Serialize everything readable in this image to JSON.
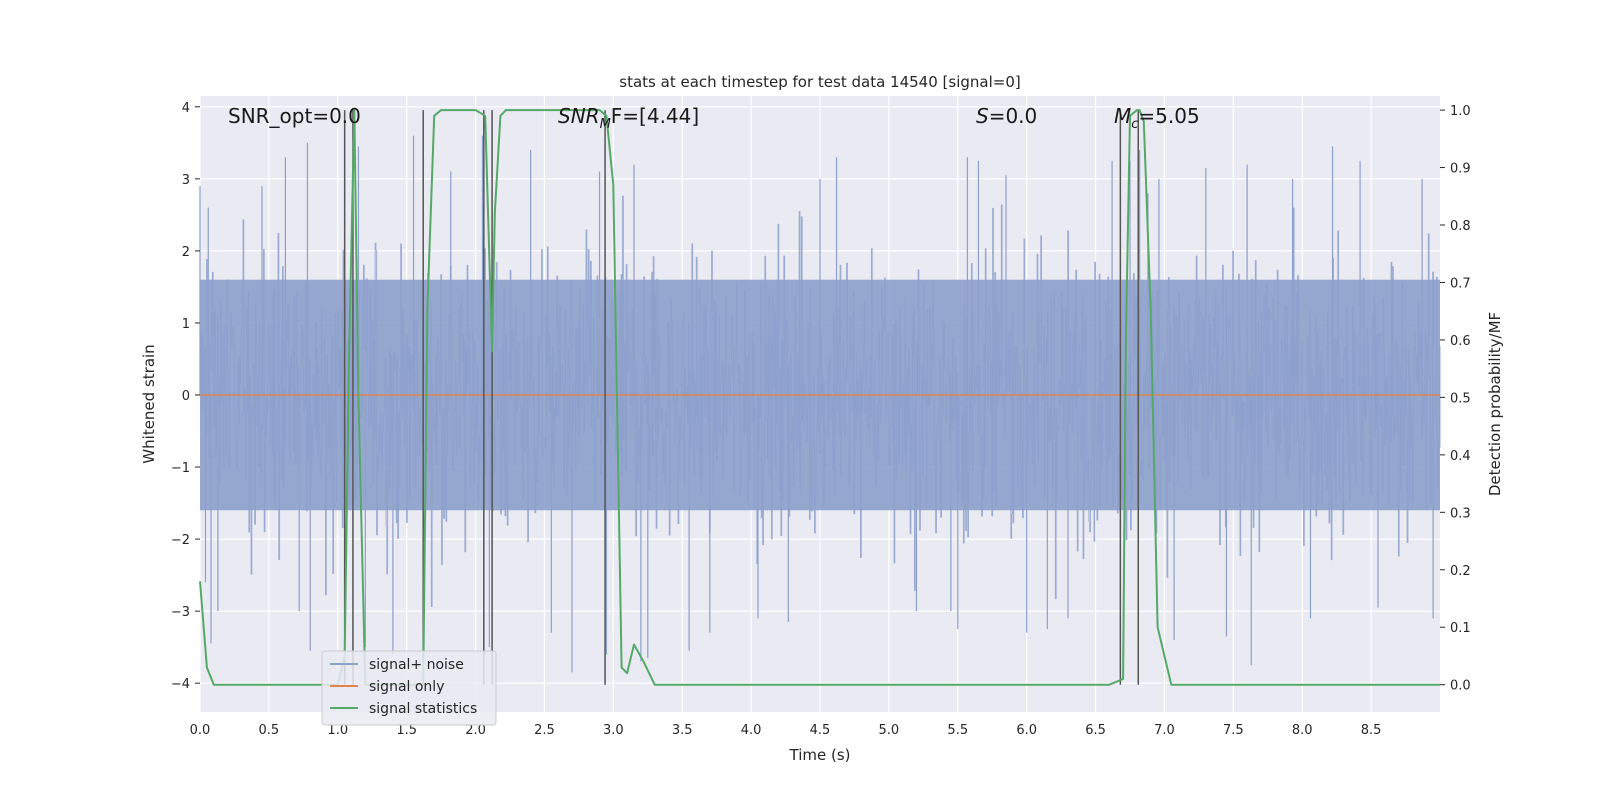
{
  "chart_data": {
    "type": "line",
    "title": "stats at each timestep for test data 14540 [signal=0]",
    "xlabel": "Time (s)",
    "ylabel": "Whitened strain",
    "y2label": "Detection probability/MF",
    "xlim": [
      0,
      9.0
    ],
    "ylim": [
      -4.4,
      4.15
    ],
    "y2lim": [
      -0.0475,
      1.0245
    ],
    "xticks": [
      "0.0",
      "0.5",
      "1.0",
      "1.5",
      "2.0",
      "2.5",
      "3.0",
      "3.5",
      "4.0",
      "4.5",
      "5.0",
      "5.5",
      "6.0",
      "6.5",
      "7.0",
      "7.5",
      "8.0",
      "8.5"
    ],
    "yticks": [
      "4",
      "3",
      "2",
      "1",
      "0",
      "−1",
      "−2",
      "−3",
      "−4"
    ],
    "y2ticks": [
      "1.0",
      "0.9",
      "0.8",
      "0.7",
      "0.6",
      "0.5",
      "0.4",
      "0.3",
      "0.2",
      "0.1",
      "0.0"
    ],
    "annotations": {
      "snr_opt": "SNR_opt=0.0",
      "snr_mf_main": "SNR",
      "snr_mf_sub": "M",
      "snr_mf_rest": "F=[4.44]",
      "s_var": "S",
      "s_rest": "=0.0",
      "mc_var": "M",
      "mc_sub": "c",
      "mc_rest": "=5.05"
    },
    "legend": {
      "position": "lower left",
      "entries": [
        "signal+ noise",
        "signal only",
        "signal statistics"
      ]
    },
    "grid": true,
    "colors": {
      "noise": "#8da0cb",
      "signal": "#dd8452",
      "stats": "#55a868",
      "vlines": "#555555",
      "background": "#eaeaf2"
    },
    "series": [
      {
        "name": "signal+ noise",
        "kind": "noise-envelope",
        "core_amplitude": 1.6,
        "peaks": [
          [
            0.0,
            2.9
          ],
          [
            0.04,
            -2.6
          ],
          [
            0.06,
            2.6
          ],
          [
            0.08,
            -3.45
          ],
          [
            0.13,
            -3.0
          ],
          [
            0.45,
            2.9
          ],
          [
            0.62,
            3.3
          ],
          [
            0.72,
            -3.0
          ],
          [
            0.78,
            3.5
          ],
          [
            0.8,
            -3.55
          ],
          [
            1.15,
            3.45
          ],
          [
            1.2,
            -3.5
          ],
          [
            1.4,
            -3.6
          ],
          [
            1.55,
            3.6
          ],
          [
            1.82,
            3.1
          ],
          [
            2.05,
            3.6
          ],
          [
            2.1,
            -3.5
          ],
          [
            2.4,
            3.4
          ],
          [
            2.55,
            -3.3
          ],
          [
            2.7,
            -3.85
          ],
          [
            2.9,
            3.1
          ],
          [
            2.95,
            -3.6
          ],
          [
            3.15,
            3.2
          ],
          [
            3.2,
            -3.7
          ],
          [
            3.25,
            -3.65
          ],
          [
            3.55,
            -3.55
          ],
          [
            3.7,
            -3.3
          ],
          [
            4.05,
            -3.1
          ],
          [
            4.27,
            -3.15
          ],
          [
            4.5,
            3.0
          ],
          [
            4.62,
            3.3
          ],
          [
            5.2,
            -3.0
          ],
          [
            5.45,
            -3.0
          ],
          [
            5.5,
            -3.25
          ],
          [
            5.57,
            3.3
          ],
          [
            5.65,
            3.25
          ],
          [
            5.85,
            3.05
          ],
          [
            6.0,
            -3.3
          ],
          [
            6.15,
            -3.25
          ],
          [
            6.3,
            -3.1
          ],
          [
            6.62,
            3.25
          ],
          [
            6.75,
            3.25
          ],
          [
            6.82,
            3.4
          ],
          [
            6.88,
            2.8
          ],
          [
            6.96,
            3.0
          ],
          [
            7.07,
            -3.4
          ],
          [
            7.3,
            3.15
          ],
          [
            7.45,
            -3.35
          ],
          [
            7.6,
            3.2
          ],
          [
            7.63,
            -3.75
          ],
          [
            7.93,
            3.0
          ],
          [
            8.06,
            -3.1
          ],
          [
            8.22,
            3.45
          ],
          [
            8.42,
            3.25
          ],
          [
            8.55,
            -2.95
          ],
          [
            8.87,
            3.0
          ],
          [
            8.95,
            -3.1
          ]
        ]
      },
      {
        "name": "signal only",
        "x": [
          0.0,
          9.0
        ],
        "y": [
          0.0,
          0.0
        ]
      },
      {
        "name": "signal statistics",
        "axis": "right",
        "x": [
          0.0,
          0.05,
          0.1,
          0.2,
          0.5,
          1.0,
          1.05,
          1.08,
          1.12,
          1.15,
          1.2,
          1.25,
          1.3,
          1.5,
          1.62,
          1.65,
          1.7,
          1.75,
          1.8,
          2.0,
          2.07,
          2.12,
          2.14,
          2.18,
          2.22,
          2.3,
          2.5,
          2.9,
          2.95,
          3.0,
          3.06,
          3.1,
          3.15,
          3.22,
          3.3,
          3.35,
          3.4,
          4.0,
          5.0,
          6.0,
          6.6,
          6.7,
          6.72,
          6.75,
          6.8,
          6.82,
          6.85,
          6.9,
          6.95,
          7.05,
          7.2,
          9.0
        ],
        "y": [
          0.18,
          0.03,
          0.0,
          0.0,
          0.0,
          0.0,
          0.05,
          0.55,
          1.0,
          0.5,
          0.0,
          0.0,
          0.0,
          0.0,
          0.0,
          0.65,
          0.99,
          1.0,
          1.0,
          1.0,
          0.99,
          0.58,
          0.82,
          0.99,
          1.0,
          1.0,
          1.0,
          1.0,
          0.99,
          0.87,
          0.03,
          0.02,
          0.07,
          0.04,
          0.0,
          0.0,
          0.0,
          0.0,
          0.0,
          0.0,
          0.0,
          0.01,
          0.6,
          0.99,
          1.0,
          1.0,
          0.98,
          0.65,
          0.1,
          0.0,
          0.0,
          0.0
        ]
      }
    ],
    "vlines": [
      1.05,
      1.11,
      1.62,
      2.06,
      2.12,
      2.94,
      6.68,
      6.81
    ]
  }
}
